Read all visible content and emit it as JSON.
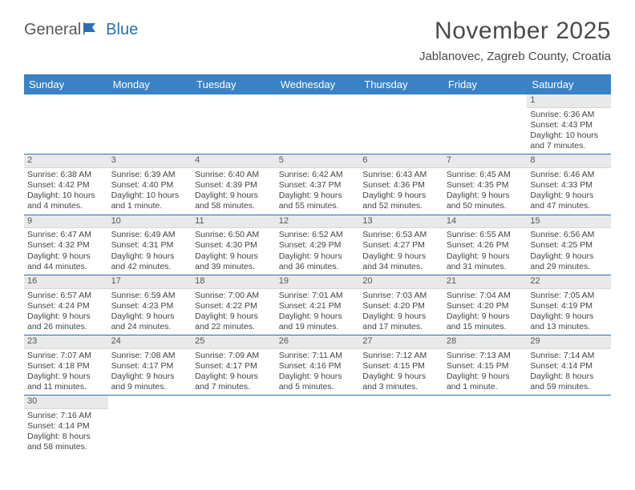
{
  "brand": {
    "part1": "General",
    "part2": "Blue"
  },
  "title": "November 2025",
  "location": "Jablanovec, Zagreb County, Croatia",
  "style": {
    "header_bg": "#3b82c4",
    "header_text": "#ffffff",
    "rule_color": "#2a6fb5",
    "daynum_bg": "#e9e9e9",
    "body_text": "#444444",
    "title_color": "#4a4a4a",
    "font_family": "Arial",
    "title_fontsize_pt": 22,
    "location_fontsize_pt": 11,
    "header_fontsize_pt": 10,
    "cell_fontsize_pt": 8
  },
  "dayNames": [
    "Sunday",
    "Monday",
    "Tuesday",
    "Wednesday",
    "Thursday",
    "Friday",
    "Saturday"
  ],
  "weeks": [
    [
      null,
      null,
      null,
      null,
      null,
      null,
      {
        "n": "1",
        "sr": "Sunrise: 6:36 AM",
        "ss": "Sunset: 4:43 PM",
        "d1": "Daylight: 10 hours",
        "d2": "and 7 minutes."
      }
    ],
    [
      {
        "n": "2",
        "sr": "Sunrise: 6:38 AM",
        "ss": "Sunset: 4:42 PM",
        "d1": "Daylight: 10 hours",
        "d2": "and 4 minutes."
      },
      {
        "n": "3",
        "sr": "Sunrise: 6:39 AM",
        "ss": "Sunset: 4:40 PM",
        "d1": "Daylight: 10 hours",
        "d2": "and 1 minute."
      },
      {
        "n": "4",
        "sr": "Sunrise: 6:40 AM",
        "ss": "Sunset: 4:39 PM",
        "d1": "Daylight: 9 hours",
        "d2": "and 58 minutes."
      },
      {
        "n": "5",
        "sr": "Sunrise: 6:42 AM",
        "ss": "Sunset: 4:37 PM",
        "d1": "Daylight: 9 hours",
        "d2": "and 55 minutes."
      },
      {
        "n": "6",
        "sr": "Sunrise: 6:43 AM",
        "ss": "Sunset: 4:36 PM",
        "d1": "Daylight: 9 hours",
        "d2": "and 52 minutes."
      },
      {
        "n": "7",
        "sr": "Sunrise: 6:45 AM",
        "ss": "Sunset: 4:35 PM",
        "d1": "Daylight: 9 hours",
        "d2": "and 50 minutes."
      },
      {
        "n": "8",
        "sr": "Sunrise: 6:46 AM",
        "ss": "Sunset: 4:33 PM",
        "d1": "Daylight: 9 hours",
        "d2": "and 47 minutes."
      }
    ],
    [
      {
        "n": "9",
        "sr": "Sunrise: 6:47 AM",
        "ss": "Sunset: 4:32 PM",
        "d1": "Daylight: 9 hours",
        "d2": "and 44 minutes."
      },
      {
        "n": "10",
        "sr": "Sunrise: 6:49 AM",
        "ss": "Sunset: 4:31 PM",
        "d1": "Daylight: 9 hours",
        "d2": "and 42 minutes."
      },
      {
        "n": "11",
        "sr": "Sunrise: 6:50 AM",
        "ss": "Sunset: 4:30 PM",
        "d1": "Daylight: 9 hours",
        "d2": "and 39 minutes."
      },
      {
        "n": "12",
        "sr": "Sunrise: 6:52 AM",
        "ss": "Sunset: 4:29 PM",
        "d1": "Daylight: 9 hours",
        "d2": "and 36 minutes."
      },
      {
        "n": "13",
        "sr": "Sunrise: 6:53 AM",
        "ss": "Sunset: 4:27 PM",
        "d1": "Daylight: 9 hours",
        "d2": "and 34 minutes."
      },
      {
        "n": "14",
        "sr": "Sunrise: 6:55 AM",
        "ss": "Sunset: 4:26 PM",
        "d1": "Daylight: 9 hours",
        "d2": "and 31 minutes."
      },
      {
        "n": "15",
        "sr": "Sunrise: 6:56 AM",
        "ss": "Sunset: 4:25 PM",
        "d1": "Daylight: 9 hours",
        "d2": "and 29 minutes."
      }
    ],
    [
      {
        "n": "16",
        "sr": "Sunrise: 6:57 AM",
        "ss": "Sunset: 4:24 PM",
        "d1": "Daylight: 9 hours",
        "d2": "and 26 minutes."
      },
      {
        "n": "17",
        "sr": "Sunrise: 6:59 AM",
        "ss": "Sunset: 4:23 PM",
        "d1": "Daylight: 9 hours",
        "d2": "and 24 minutes."
      },
      {
        "n": "18",
        "sr": "Sunrise: 7:00 AM",
        "ss": "Sunset: 4:22 PM",
        "d1": "Daylight: 9 hours",
        "d2": "and 22 minutes."
      },
      {
        "n": "19",
        "sr": "Sunrise: 7:01 AM",
        "ss": "Sunset: 4:21 PM",
        "d1": "Daylight: 9 hours",
        "d2": "and 19 minutes."
      },
      {
        "n": "20",
        "sr": "Sunrise: 7:03 AM",
        "ss": "Sunset: 4:20 PM",
        "d1": "Daylight: 9 hours",
        "d2": "and 17 minutes."
      },
      {
        "n": "21",
        "sr": "Sunrise: 7:04 AM",
        "ss": "Sunset: 4:20 PM",
        "d1": "Daylight: 9 hours",
        "d2": "and 15 minutes."
      },
      {
        "n": "22",
        "sr": "Sunrise: 7:05 AM",
        "ss": "Sunset: 4:19 PM",
        "d1": "Daylight: 9 hours",
        "d2": "and 13 minutes."
      }
    ],
    [
      {
        "n": "23",
        "sr": "Sunrise: 7:07 AM",
        "ss": "Sunset: 4:18 PM",
        "d1": "Daylight: 9 hours",
        "d2": "and 11 minutes."
      },
      {
        "n": "24",
        "sr": "Sunrise: 7:08 AM",
        "ss": "Sunset: 4:17 PM",
        "d1": "Daylight: 9 hours",
        "d2": "and 9 minutes."
      },
      {
        "n": "25",
        "sr": "Sunrise: 7:09 AM",
        "ss": "Sunset: 4:17 PM",
        "d1": "Daylight: 9 hours",
        "d2": "and 7 minutes."
      },
      {
        "n": "26",
        "sr": "Sunrise: 7:11 AM",
        "ss": "Sunset: 4:16 PM",
        "d1": "Daylight: 9 hours",
        "d2": "and 5 minutes."
      },
      {
        "n": "27",
        "sr": "Sunrise: 7:12 AM",
        "ss": "Sunset: 4:15 PM",
        "d1": "Daylight: 9 hours",
        "d2": "and 3 minutes."
      },
      {
        "n": "28",
        "sr": "Sunrise: 7:13 AM",
        "ss": "Sunset: 4:15 PM",
        "d1": "Daylight: 9 hours",
        "d2": "and 1 minute."
      },
      {
        "n": "29",
        "sr": "Sunrise: 7:14 AM",
        "ss": "Sunset: 4:14 PM",
        "d1": "Daylight: 8 hours",
        "d2": "and 59 minutes."
      }
    ],
    [
      {
        "n": "30",
        "sr": "Sunrise: 7:16 AM",
        "ss": "Sunset: 4:14 PM",
        "d1": "Daylight: 8 hours",
        "d2": "and 58 minutes."
      },
      null,
      null,
      null,
      null,
      null,
      null
    ]
  ]
}
